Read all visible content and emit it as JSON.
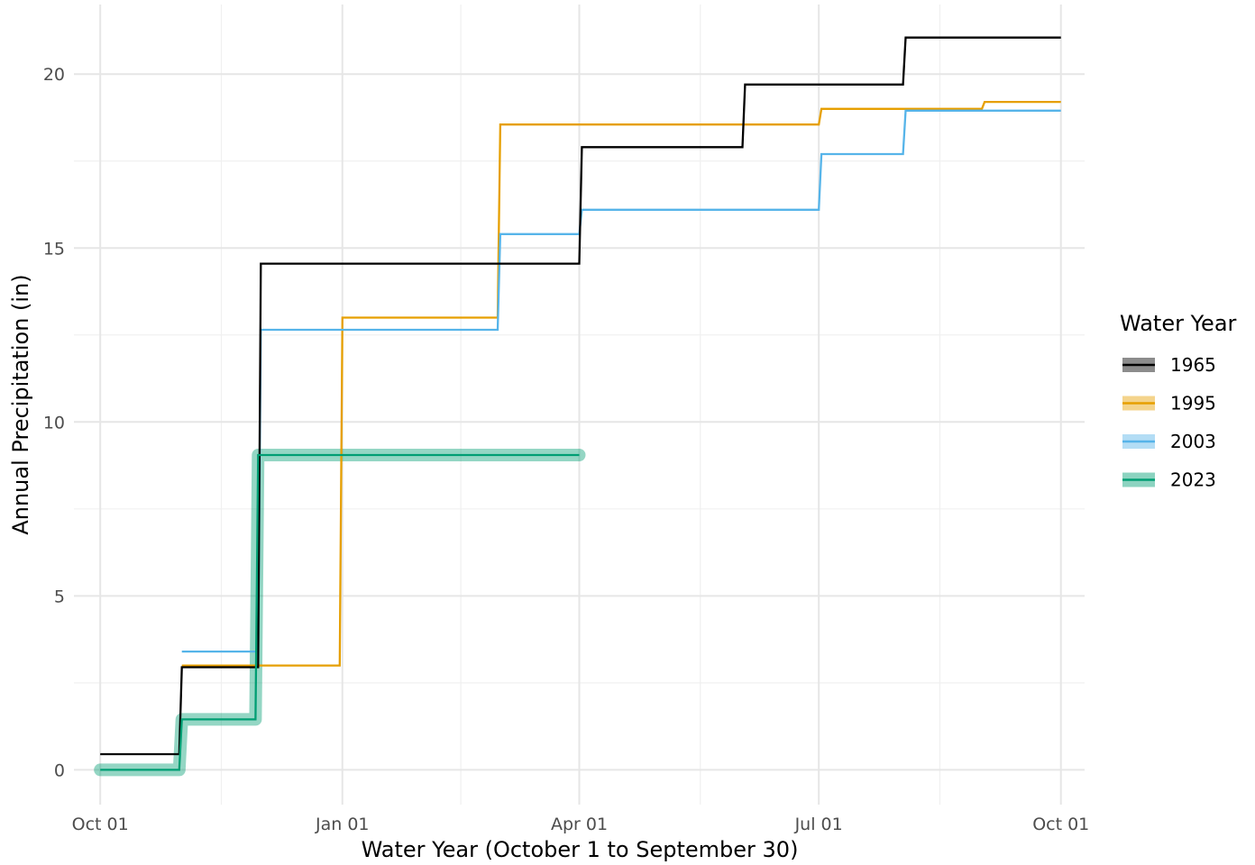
{
  "chart_data": {
    "type": "line",
    "step": true,
    "title": "",
    "xlabel": "Water Year (October 1 to September 30)",
    "ylabel": "Annual Precipitation (in)",
    "x_axis": {
      "type": "day_of_water_year",
      "lim": [
        -10,
        374
      ],
      "major_ticks": [
        0,
        92,
        182,
        273,
        365
      ],
      "major_tick_labels": [
        "Oct 01",
        "Jan 01",
        "Apr 01",
        "Jul 01",
        "Oct 01"
      ],
      "minor_ticks": [
        46,
        137,
        228,
        319
      ]
    },
    "y_axis": {
      "lim": [
        -1,
        22
      ],
      "major_ticks": [
        0,
        5,
        10,
        15,
        20
      ],
      "major_tick_labels": [
        "0",
        "5",
        "10",
        "15",
        "20"
      ],
      "minor_ticks": [
        2.5,
        7.5,
        12.5,
        17.5
      ]
    },
    "grid": true,
    "legend": {
      "title": "Water Year",
      "position": "right"
    },
    "series": [
      {
        "name": "1965",
        "color": "#000000",
        "highlight": false,
        "points": [
          [
            0,
            0.45
          ],
          [
            30,
            0.45
          ],
          [
            31,
            2.95
          ],
          [
            60,
            2.95
          ],
          [
            61,
            14.55
          ],
          [
            182,
            14.55
          ],
          [
            183,
            17.9
          ],
          [
            244,
            17.9
          ],
          [
            245,
            19.7
          ],
          [
            305,
            19.7
          ],
          [
            306,
            21.05
          ],
          [
            365,
            21.05
          ]
        ]
      },
      {
        "name": "1995",
        "color": "#E69F00",
        "highlight": false,
        "points": [
          [
            31,
            3.0
          ],
          [
            91,
            3.0
          ],
          [
            92,
            13.0
          ],
          [
            151,
            13.0
          ],
          [
            152,
            18.55
          ],
          [
            273,
            18.55
          ],
          [
            274,
            19.0
          ],
          [
            335,
            19.0
          ],
          [
            336,
            19.2
          ],
          [
            365,
            19.2
          ]
        ]
      },
      {
        "name": "2003",
        "color": "#56B4E9",
        "highlight": false,
        "points": [
          [
            31,
            3.4
          ],
          [
            60,
            3.4
          ],
          [
            61,
            12.65
          ],
          [
            151,
            12.65
          ],
          [
            152,
            15.4
          ],
          [
            182,
            15.4
          ],
          [
            183,
            16.1
          ],
          [
            273,
            16.1
          ],
          [
            274,
            17.7
          ],
          [
            305,
            17.7
          ],
          [
            306,
            18.95
          ],
          [
            365,
            18.95
          ]
        ]
      },
      {
        "name": "2023",
        "color": "#009E73",
        "highlight": true,
        "points": [
          [
            0,
            0.0
          ],
          [
            30,
            0.0
          ],
          [
            31,
            1.45
          ],
          [
            59,
            1.45
          ],
          [
            60,
            9.05
          ],
          [
            182,
            9.05
          ]
        ]
      }
    ]
  }
}
